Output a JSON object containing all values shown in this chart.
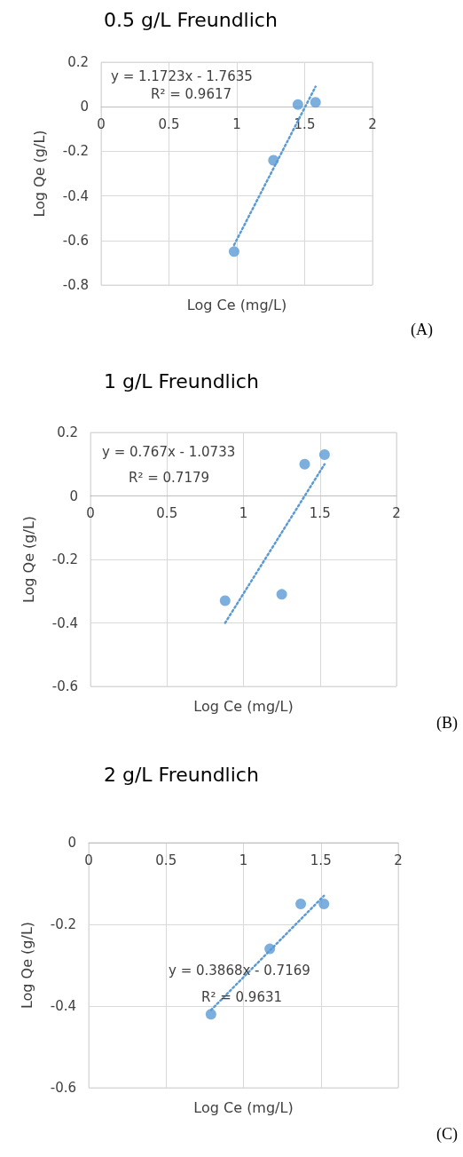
{
  "chart_data": [
    {
      "type": "scatter",
      "title": "0.5 g/L Freundlich",
      "xlabel": "Log Ce (mg/L)",
      "ylabel": "Log Qe (g/L)",
      "xlim": [
        0,
        2
      ],
      "xticks": [
        0,
        0.5,
        1,
        1.5,
        2
      ],
      "ylim": [
        -0.8,
        0.2
      ],
      "yticks": [
        -0.8,
        -0.6,
        -0.4,
        -0.2,
        0,
        0.2
      ],
      "grid": true,
      "marker": "circle",
      "annotations": [
        "y = 1.1723x - 1.7635",
        "R² = 0.9617",
        "(A)"
      ],
      "series": [
        {
          "type": "scatter",
          "color": "#5b9bd5",
          "x": [
            0.98,
            1.27,
            1.45,
            1.58
          ],
          "values": [
            -0.65,
            -0.24,
            0.01,
            0.02
          ]
        },
        {
          "type": "line",
          "color": "#5b9bd5",
          "line_style": "dotted",
          "marker": "none",
          "x": [
            0.98,
            1.58
          ],
          "values": [
            -0.62,
            0.09
          ]
        }
      ]
    },
    {
      "type": "scatter",
      "title": "1 g/L Freundlich",
      "xlabel": "Log Ce (mg/L)",
      "ylabel": "Log Qe (g/L)",
      "xlim": [
        0,
        2
      ],
      "xticks": [
        0,
        0.5,
        1,
        1.5,
        2
      ],
      "ylim": [
        -0.6,
        0.2
      ],
      "yticks": [
        -0.6,
        -0.4,
        -0.2,
        0,
        0.2
      ],
      "grid": true,
      "marker": "circle",
      "annotations": [
        "y = 0.767x - 1.0733",
        "R² = 0.7179",
        "(B)"
      ],
      "series": [
        {
          "type": "scatter",
          "color": "#5b9bd5",
          "x": [
            0.88,
            1.25,
            1.4,
            1.53
          ],
          "values": [
            -0.33,
            -0.31,
            0.1,
            0.13
          ]
        },
        {
          "type": "line",
          "color": "#5b9bd5",
          "line_style": "dotted",
          "marker": "none",
          "x": [
            0.88,
            1.53
          ],
          "values": [
            -0.4,
            0.1
          ]
        }
      ]
    },
    {
      "type": "scatter",
      "title": "2 g/L Freundlich",
      "xlabel": "Log Ce (mg/L)",
      "ylabel": "Log Qe (g/L)",
      "xlim": [
        0,
        2
      ],
      "xticks": [
        0,
        0.5,
        1,
        1.5,
        2
      ],
      "ylim": [
        -0.6,
        0
      ],
      "yticks": [
        -0.6,
        -0.4,
        -0.2,
        0
      ],
      "grid": true,
      "marker": "circle",
      "annotations": [
        "y = 0.3868x - 0.7169",
        "R² = 0.9631",
        "(C)"
      ],
      "series": [
        {
          "type": "scatter",
          "color": "#5b9bd5",
          "x": [
            0.79,
            1.17,
            1.37,
            1.52
          ],
          "values": [
            -0.42,
            -0.26,
            -0.15,
            -0.15
          ]
        },
        {
          "type": "line",
          "color": "#5b9bd5",
          "line_style": "dotted",
          "marker": "none",
          "x": [
            0.79,
            1.52
          ],
          "values": [
            -0.41,
            -0.13
          ]
        }
      ]
    }
  ]
}
